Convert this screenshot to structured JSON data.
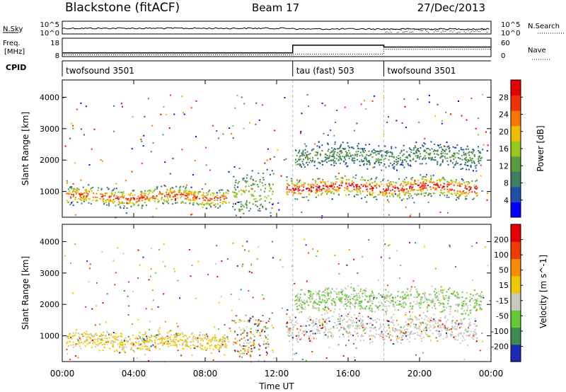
{
  "header": {
    "station": "Blackstone (fitACF)",
    "beam": "Beam 17",
    "date": "27/Dec/2013"
  },
  "chart_data": [
    {
      "type": "line",
      "panel": "noise",
      "left_label": "N.Sky",
      "right_label": "N.Search",
      "left_ticks": [
        "10^5",
        "10^0"
      ],
      "right_ticks": [
        "10^5",
        "10^0"
      ],
      "x_range_hours": [
        0,
        24
      ]
    },
    {
      "type": "line",
      "panel": "frequency",
      "left_label_lines": [
        "Freq.",
        "[MHz]"
      ],
      "right_label": "Nave",
      "left_ticks": [
        18,
        8
      ],
      "right_ticks": [
        60,
        0
      ],
      "freq_ylim": [
        8,
        18
      ],
      "nave_ylim": [
        0,
        60
      ],
      "freq_series": {
        "x": [
          0,
          12.9,
          12.9,
          18,
          18,
          24
        ],
        "y": [
          10,
          10,
          14.2,
          14.2,
          13.2,
          13.2
        ]
      },
      "nave_series": {
        "x": [
          0,
          12.9,
          12.9,
          18,
          18,
          24
        ],
        "y": [
          6,
          6,
          8,
          8,
          24,
          24
        ]
      }
    },
    {
      "type": "table",
      "panel": "cpid",
      "label": "CPID",
      "segments": [
        {
          "name": "twofsound 3501",
          "start": 0,
          "end": 12.9
        },
        {
          "name": "tau (fast) 503",
          "start": 12.9,
          "end": 18
        },
        {
          "name": "twofsound 3501",
          "start": 18,
          "end": 24
        }
      ]
    },
    {
      "type": "heatmap",
      "panel": "power",
      "ylabel": "Slant Range [km]",
      "yticks": [
        1000,
        2000,
        3000,
        4000
      ],
      "ylim": [
        180,
        4550
      ],
      "colorbar_label": "Power [dB]",
      "colorbar_ticks": [
        "28",
        "24",
        "20",
        "16",
        "12",
        "8",
        "4"
      ],
      "colors": [
        "#0000ff",
        "#1e50aa",
        "#3c7d64",
        "#5a9b3c",
        "#96c81e",
        "#f0be00",
        "#fa7800",
        "#f03200",
        "#e60000"
      ],
      "bands": [
        {
          "x0": 0.2,
          "x1": 9.3,
          "y0": 600,
          "y1": 1300,
          "core": 850,
          "intensity": 0.85
        },
        {
          "x0": 12.5,
          "x1": 23.2,
          "y0": 900,
          "y1": 1700,
          "core": 1150,
          "intensity": 0.95
        },
        {
          "x0": 9.5,
          "x1": 11.8,
          "y0": 450,
          "y1": 2300,
          "core": 900,
          "intensity": 0.45
        },
        {
          "x0": 13.0,
          "x1": 23.5,
          "y0": 1800,
          "y1": 2700,
          "core": 2150,
          "intensity": 0.3
        }
      ]
    },
    {
      "type": "heatmap",
      "panel": "velocity",
      "ylabel": "Slant Range [km]",
      "yticks": [
        1000,
        2000,
        3000,
        4000
      ],
      "ylim": [
        180,
        4550
      ],
      "colorbar_label": "Velocity [m s^-1]",
      "colorbar_ticks": [
        "200",
        "100",
        "50",
        "15",
        "-15",
        "-50",
        "-100",
        "-200"
      ],
      "colors": [
        "#1e28b4",
        "#3c8c50",
        "#64c832",
        "#c8c8be",
        "#f0c800",
        "#fa8c00",
        "#f03c00",
        "#e60000"
      ],
      "bands": [
        {
          "x0": 0.2,
          "x1": 9.3,
          "y0": 600,
          "y1": 1300,
          "core": 850,
          "palette": "orange"
        },
        {
          "x0": 12.5,
          "x1": 23.2,
          "y0": 900,
          "y1": 1900,
          "core": 1250,
          "palette": "grey"
        },
        {
          "x0": 9.5,
          "x1": 11.8,
          "y0": 450,
          "y1": 2300,
          "core": 900,
          "palette": "mixed"
        },
        {
          "x0": 13.0,
          "x1": 23.5,
          "y0": 1800,
          "y1": 2700,
          "core": 2150,
          "palette": "green"
        }
      ],
      "xlabel": "Time UT",
      "xticks": [
        "00:00",
        "04:00",
        "08:00",
        "12:00",
        "16:00",
        "20:00",
        "00:00"
      ],
      "xtick_hours": [
        0,
        4,
        8,
        12,
        16,
        20,
        24
      ]
    }
  ]
}
